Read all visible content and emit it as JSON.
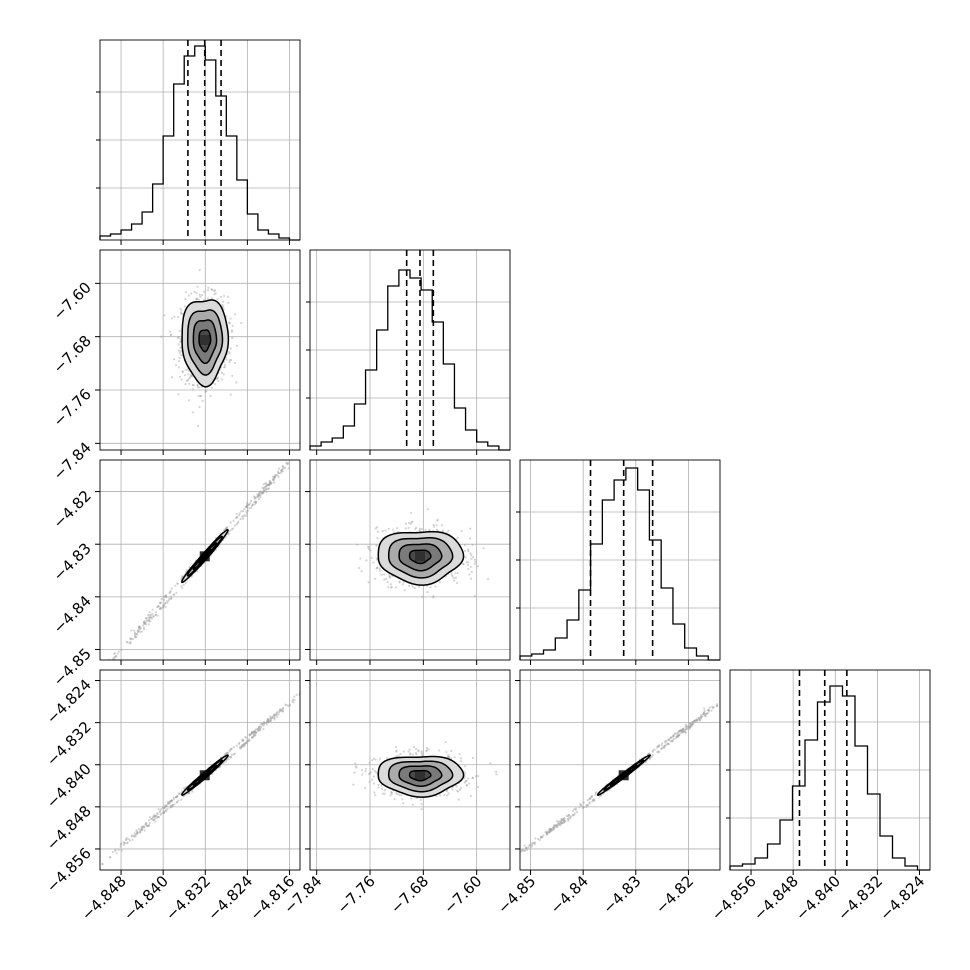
{
  "chart_data": {
    "type": "corner",
    "parameters": 4,
    "grid": true,
    "ticks": [
      [
        "−4.848",
        "−4.840",
        "−4.832",
        "−4.824",
        "−4.816"
      ],
      [
        "−7.84",
        "−7.76",
        "−7.68",
        "−7.60"
      ],
      [
        "−4.85",
        "−4.84",
        "−4.83",
        "−4.82"
      ],
      [
        "−4.856",
        "−4.848",
        "−4.840",
        "−4.832",
        "−4.824"
      ]
    ],
    "axes": [
      {
        "ticks": [
          -4.848,
          -4.84,
          -4.832,
          -4.824,
          -4.816
        ],
        "range": [
          -4.852,
          -4.814
        ]
      },
      {
        "ticks": [
          -7.84,
          -7.76,
          -7.68,
          -7.6
        ],
        "range": [
          -7.85,
          -7.55
        ]
      },
      {
        "ticks": [
          -4.85,
          -4.84,
          -4.83,
          -4.82
        ],
        "range": [
          -4.852,
          -4.814
        ]
      },
      {
        "ticks": [
          -4.856,
          -4.848,
          -4.84,
          -4.832,
          -4.824
        ],
        "range": [
          -4.86,
          -4.822
        ]
      }
    ],
    "histograms": [
      {
        "param": 0,
        "quantiles": [
          -4.8353,
          -4.8321,
          -4.829
        ],
        "counts": [
          0.02,
          0.03,
          0.05,
          0.08,
          0.14,
          0.28,
          0.52,
          0.78,
          0.92,
          0.97,
          0.9,
          0.72,
          0.52,
          0.3,
          0.13,
          0.05,
          0.03,
          0.01,
          0.0
        ]
      },
      {
        "param": 1,
        "quantiles": [
          -7.705,
          -7.685,
          -7.665
        ],
        "counts": [
          0.02,
          0.04,
          0.06,
          0.12,
          0.23,
          0.4,
          0.6,
          0.82,
          0.9,
          0.86,
          0.8,
          0.64,
          0.43,
          0.21,
          0.1,
          0.04,
          0.02,
          0.0
        ]
      },
      {
        "param": 2,
        "quantiles": [
          -4.8386,
          -4.8323,
          -4.8268
        ],
        "counts": [
          0.02,
          0.03,
          0.05,
          0.11,
          0.2,
          0.35,
          0.58,
          0.8,
          0.9,
          0.96,
          0.85,
          0.6,
          0.36,
          0.18,
          0.06,
          0.02,
          0.0
        ]
      },
      {
        "param": 3,
        "quantiles": [
          -4.8468,
          -4.842,
          -4.8378
        ],
        "counts": [
          0.02,
          0.03,
          0.06,
          0.13,
          0.25,
          0.42,
          0.65,
          0.84,
          0.92,
          0.87,
          0.62,
          0.38,
          0.17,
          0.06,
          0.02,
          0.0
        ]
      }
    ],
    "contour_panels": [
      {
        "row": 1,
        "col": 0,
        "center": [
          -4.8321,
          -7.685
        ],
        "sigma": [
          0.0022,
          0.032
        ],
        "rho": 0.0
      },
      {
        "row": 2,
        "col": 0,
        "center": [
          -4.8321,
          -4.8323
        ],
        "sigma": [
          0.0022,
          0.0025
        ],
        "rho": 0.985
      },
      {
        "row": 2,
        "col": 1,
        "center": [
          -7.685,
          -4.8323
        ],
        "sigma": [
          0.032,
          0.0025
        ],
        "rho": 0.0
      },
      {
        "row": 3,
        "col": 0,
        "center": [
          -4.8321,
          -4.842
        ],
        "sigma": [
          0.0022,
          0.0019
        ],
        "rho": 0.985
      },
      {
        "row": 3,
        "col": 1,
        "center": [
          -7.685,
          -4.842
        ],
        "sigma": [
          0.032,
          0.0019
        ],
        "rho": 0.0
      },
      {
        "row": 3,
        "col": 2,
        "center": [
          -4.8323,
          -4.842
        ],
        "sigma": [
          0.0025,
          0.0019
        ],
        "rho": 0.99
      }
    ],
    "colors": {
      "line": "#000000",
      "grid": "#b0b0b0",
      "points": "#a0a0a0",
      "fill_dark": "#303030"
    }
  }
}
